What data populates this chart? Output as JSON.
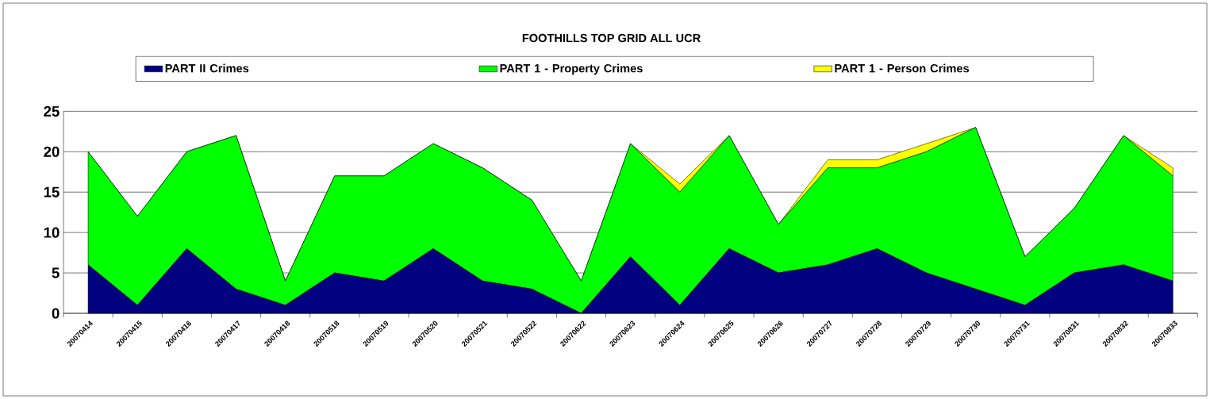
{
  "chart_data": {
    "type": "area",
    "stacked": true,
    "title": "FOOTHILLS TOP GRID ALL UCR",
    "categories": [
      "20070414",
      "20070415",
      "20070416",
      "20070417",
      "20070418",
      "20070518",
      "20070519",
      "20070520",
      "20070521",
      "20070522",
      "20070622",
      "20070623",
      "20070624",
      "20070625",
      "20070626",
      "20070727",
      "20070728",
      "20070729",
      "20070730",
      "20070731",
      "20070831",
      "20070832",
      "20070833"
    ],
    "series": [
      {
        "name": "PART II Crimes",
        "color": "#000080",
        "values": [
          6,
          1,
          8,
          3,
          1,
          5,
          4,
          8,
          4,
          3,
          0,
          7,
          1,
          8,
          5,
          6,
          8,
          5,
          3,
          1,
          5,
          6,
          4
        ]
      },
      {
        "name": "PART 1 - Property Crimes",
        "color": "#00ff00",
        "values": [
          14,
          11,
          12,
          19,
          3,
          12,
          13,
          13,
          14,
          11,
          4,
          14,
          14,
          14,
          6,
          12,
          10,
          15,
          20,
          6,
          8,
          16,
          13
        ]
      },
      {
        "name": "PART 1 - Person Crimes",
        "color": "#ffff00",
        "values": [
          0,
          0,
          0,
          0,
          0,
          0,
          0,
          0,
          0,
          0,
          0,
          0,
          1,
          0,
          0,
          1,
          1,
          1,
          0,
          0,
          0,
          0,
          1
        ]
      }
    ],
    "ylim": [
      0,
      25
    ],
    "yticks": [
      0,
      5,
      10,
      15,
      20,
      25
    ],
    "grid": "y",
    "legend": "top"
  }
}
